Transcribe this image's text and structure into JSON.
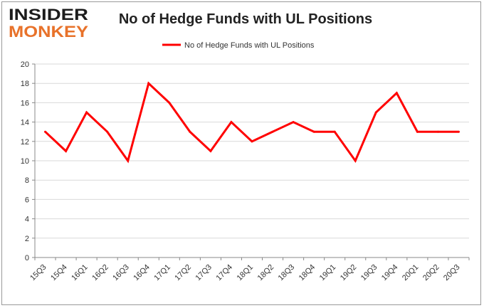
{
  "logo": {
    "line1": "INSIDER",
    "line2": "MONKEY"
  },
  "title": "No of Hedge Funds with UL Positions",
  "chart_data": {
    "type": "line",
    "title": "No of Hedge Funds with UL Positions",
    "xlabel": "",
    "ylabel": "",
    "categories": [
      "15Q3",
      "15Q4",
      "16Q1",
      "16Q2",
      "16Q3",
      "16Q4",
      "17Q1",
      "17Q2",
      "17Q3",
      "17Q4",
      "18Q1",
      "18Q2",
      "18Q3",
      "18Q4",
      "19Q1",
      "19Q2",
      "19Q3",
      "19Q4",
      "20Q1",
      "20Q2",
      "20Q3"
    ],
    "series": [
      {
        "name": "No of Hedge Funds with UL Positions",
        "values": [
          13,
          11,
          15,
          13,
          10,
          18,
          16,
          13,
          11,
          14,
          12,
          13,
          14,
          13,
          13,
          10,
          15,
          17,
          13,
          13,
          13
        ],
        "color": "#ff0000"
      }
    ],
    "ylim": [
      0,
      20
    ],
    "yticks": [
      0,
      2,
      4,
      6,
      8,
      10,
      12,
      14,
      16,
      18,
      20
    ],
    "grid": true,
    "legend_position": "top-center"
  }
}
